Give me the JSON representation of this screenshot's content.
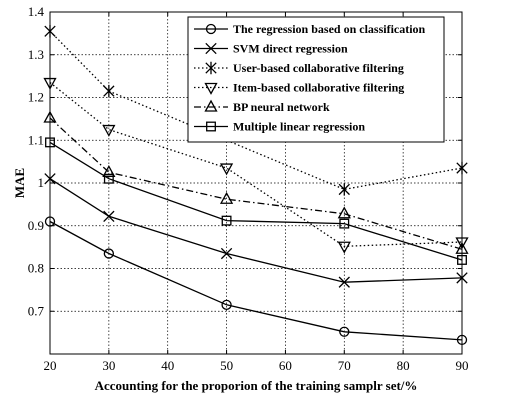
{
  "chart_data": {
    "type": "line",
    "title": "",
    "xlabel": "Accounting for the proporion of the training samplr set/%",
    "ylabel": "MAE",
    "xlim": [
      20,
      90
    ],
    "ylim": [
      0.6,
      1.4
    ],
    "xticks": [
      20,
      30,
      40,
      50,
      60,
      70,
      80,
      90
    ],
    "yticks": [
      0.7,
      0.8,
      0.9,
      1,
      1.1,
      1.2,
      1.3,
      1.4
    ],
    "xtick_labels": [
      "20",
      "30",
      "40",
      "50",
      "60",
      "70",
      "80",
      "90"
    ],
    "ytick_labels": [
      "0.7",
      "0.8",
      "0.9",
      "1",
      "1.1",
      "1.2",
      "1.3",
      "1.4"
    ],
    "grid": true,
    "legend_position": "top-right",
    "series": [
      {
        "name": "The regression based on classification",
        "marker": "circle",
        "line": "solid",
        "x": [
          20,
          30,
          50,
          70,
          90
        ],
        "values": [
          0.91,
          0.835,
          0.715,
          0.652,
          0.633
        ]
      },
      {
        "name": "SVM direct regression",
        "marker": "x",
        "line": "solid",
        "x": [
          20,
          30,
          50,
          70,
          90
        ],
        "values": [
          1.01,
          0.922,
          0.835,
          0.768,
          0.778
        ]
      },
      {
        "name": "User-based collaborative filtering",
        "marker": "star",
        "line": "dotted",
        "x": [
          20,
          30,
          70,
          90
        ],
        "values": [
          1.355,
          1.215,
          0.985,
          1.035
        ]
      },
      {
        "name": "Item-based collaborative filtering",
        "marker": "triangle-down",
        "line": "dotted",
        "x": [
          20,
          30,
          50,
          70,
          90
        ],
        "values": [
          1.235,
          1.125,
          1.035,
          0.852,
          0.862
        ]
      },
      {
        "name": "BP neural network",
        "marker": "triangle-up",
        "line": "dashdot",
        "x": [
          20,
          30,
          50,
          70,
          90
        ],
        "values": [
          1.152,
          1.025,
          0.962,
          0.928,
          0.845
        ]
      },
      {
        "name": "Multiple linear regression",
        "marker": "square",
        "line": "solid",
        "x": [
          20,
          30,
          50,
          70,
          90
        ],
        "values": [
          1.095,
          1.01,
          0.912,
          0.905,
          0.82
        ]
      }
    ]
  }
}
